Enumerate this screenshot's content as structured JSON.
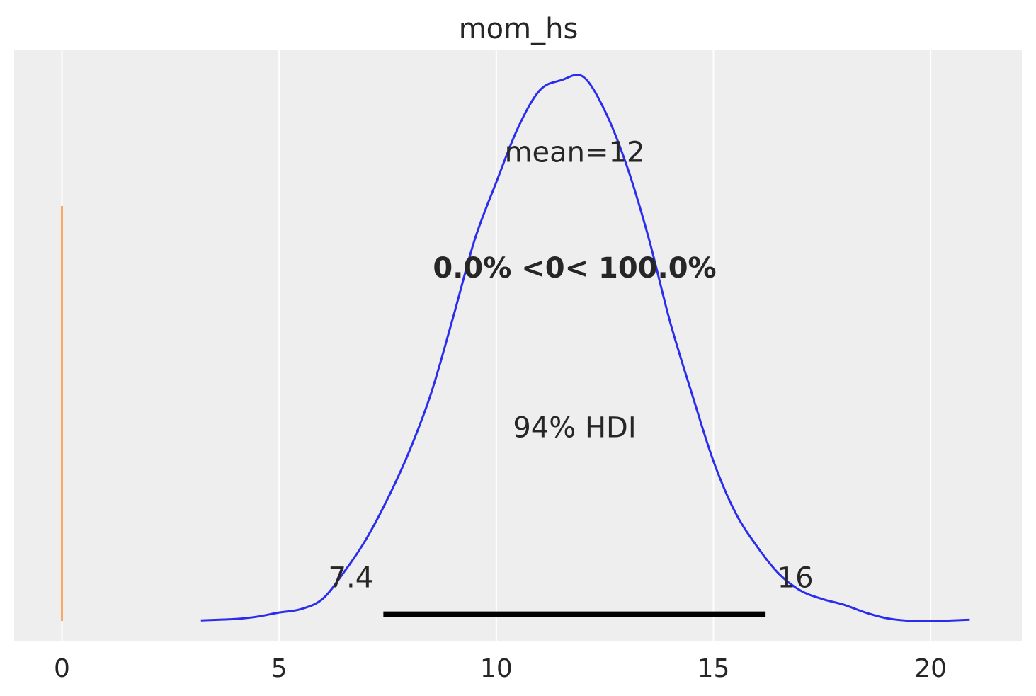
{
  "chart_data": {
    "type": "line",
    "title": "mom_hs",
    "xlabel": "",
    "ylabel": "",
    "xlim": [
      -1.1,
      22.1
    ],
    "ylim": [
      -0.006,
      0.168
    ],
    "grid": "vertical",
    "x_ticks": [
      0,
      5,
      10,
      15,
      20
    ],
    "x_tick_labels": [
      "0",
      "5",
      "10",
      "15",
      "20"
    ],
    "density": {
      "x": [
        3.2,
        4.0,
        4.5,
        5.0,
        5.5,
        6.0,
        6.5,
        7.0,
        7.5,
        8.0,
        8.5,
        9.0,
        9.5,
        10.0,
        10.5,
        11.0,
        11.5,
        12.0,
        12.5,
        13.0,
        13.5,
        14.0,
        14.5,
        15.0,
        15.5,
        16.0,
        16.5,
        17.0,
        17.5,
        18.0,
        18.5,
        19.0,
        19.5,
        20.0,
        20.5,
        20.9
      ],
      "y": [
        0.0002,
        0.0006,
        0.0013,
        0.0025,
        0.0035,
        0.0065,
        0.0145,
        0.024,
        0.036,
        0.05,
        0.067,
        0.089,
        0.112,
        0.129,
        0.145,
        0.156,
        0.159,
        0.16,
        0.15,
        0.134,
        0.113,
        0.088,
        0.067,
        0.047,
        0.032,
        0.022,
        0.014,
        0.009,
        0.0065,
        0.0048,
        0.0025,
        0.0008,
        0.0001,
        0.0,
        0.0002,
        0.0004
      ],
      "color": "#2a2eec"
    },
    "reference_line": {
      "x": 0,
      "y_range": [
        0.0,
        0.122
      ],
      "color": "#fa7c17"
    },
    "hdi": {
      "low": 7.4,
      "high": 16.2,
      "low_label": "7.4",
      "high_label": "16",
      "y": 0.002,
      "label": "94% HDI",
      "color": "#000000"
    },
    "annotations": {
      "mean": {
        "text": "mean=12",
        "x": 12.0,
        "y": 0.135
      },
      "ref": {
        "text": "0.0% <0< 100.0%",
        "x": 12.0,
        "y": 0.101,
        "color": "#fa7c17"
      },
      "hdi_label": {
        "text": "94% HDI",
        "x": 12.0,
        "y": 0.054
      }
    }
  }
}
